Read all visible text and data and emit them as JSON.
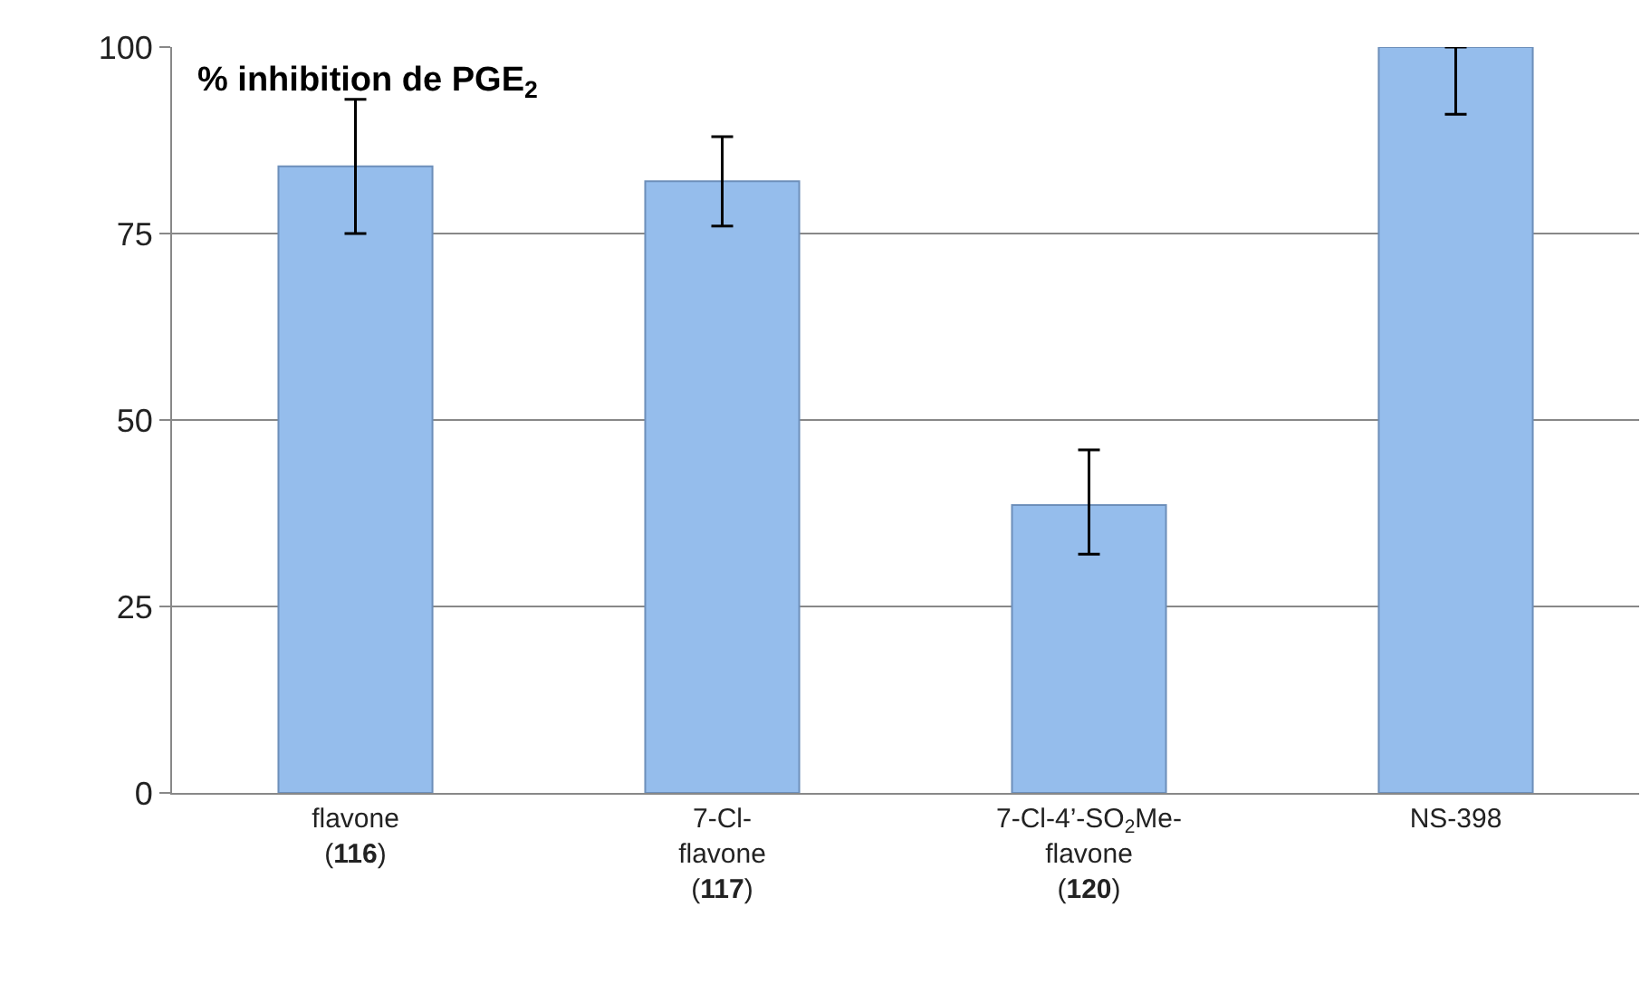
{
  "chart_data": {
    "type": "bar",
    "title": "% inhibition de PGE$_{2}$",
    "categories": [
      "flavone\n(116)",
      "7-Cl-\nflavone\n(117)",
      "7-Cl-4’-SO$_{2}$Me-\nflavone\n(120)",
      "NS-398"
    ],
    "values": [
      84,
      82,
      38.6,
      100
    ],
    "errors": [
      [
        75,
        93
      ],
      [
        76,
        88
      ],
      [
        32,
        46
      ],
      [
        91,
        100
      ]
    ],
    "color": "#95bdec",
    "ylim": [
      0,
      100
    ],
    "yticks": [
      0,
      25,
      50,
      75,
      100
    ],
    "grid": "y"
  }
}
